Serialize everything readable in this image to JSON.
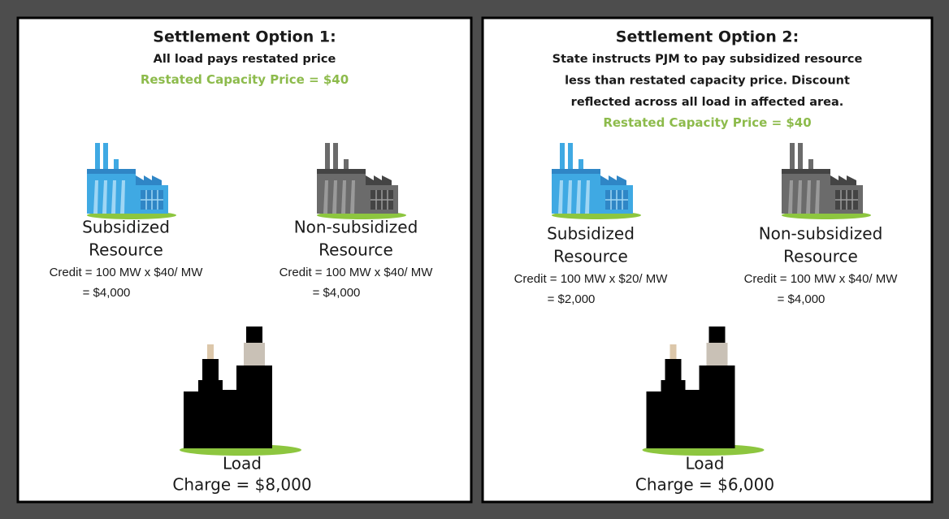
{
  "panels": [
    {
      "title": "Settlement Option 1:",
      "description": [
        "All load pays restated price"
      ],
      "price": "Restated Capacity Price = $40",
      "resources": [
        {
          "name": [
            "Subsidized",
            "Resource"
          ],
          "credit": [
            "Credit = 100 MW x $40/ MW",
            "= $4,000"
          ]
        },
        {
          "name": [
            "Non-subsidized",
            "Resource"
          ],
          "credit": [
            "Credit = 100 MW x $40/ MW",
            "= $4,000"
          ]
        }
      ],
      "load": {
        "label": "Load",
        "charge": "Charge = $8,000"
      }
    },
    {
      "title": "Settlement Option 2:",
      "description": [
        "State instructs PJM to pay subsidized resource",
        "less than restated capacity price. Discount",
        "reflected across all load in affected area."
      ],
      "price": "Restated Capacity Price = $40",
      "resources": [
        {
          "name": [
            "Subsidized",
            "Resource"
          ],
          "credit": [
            "Credit = 100 MW x $20/ MW",
            "= $2,000"
          ]
        },
        {
          "name": [
            "Non-subsidized",
            "Resource"
          ],
          "credit": [
            "Credit = 100 MW x $40/ MW",
            "= $4,000"
          ]
        }
      ],
      "load": {
        "label": "Load",
        "charge": "Charge = $6,000"
      }
    }
  ]
}
